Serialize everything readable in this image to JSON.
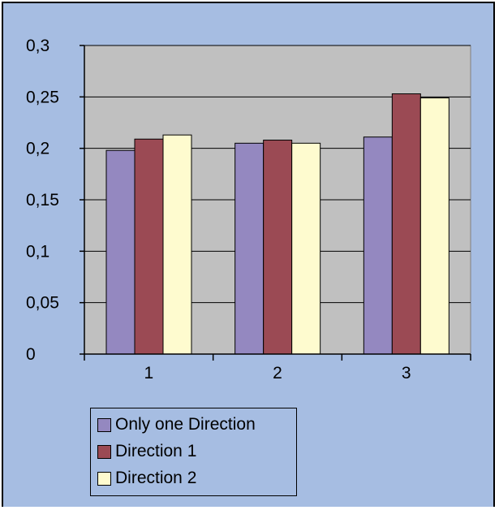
{
  "chart_data": {
    "type": "bar",
    "categories": [
      "1",
      "2",
      "3"
    ],
    "series": [
      {
        "name": "Only one Direction",
        "color": "#9488c0",
        "values": [
          0.198,
          0.205,
          0.211
        ]
      },
      {
        "name": "Direction 1",
        "color": "#9b4a54",
        "values": [
          0.209,
          0.208,
          0.253
        ]
      },
      {
        "name": "Direction 2",
        "color": "#fefbcf",
        "values": [
          0.213,
          0.205,
          0.249
        ]
      }
    ],
    "ylim": [
      0,
      0.3
    ],
    "yticks": [
      0,
      0.05,
      0.1,
      0.15,
      0.2,
      0.25,
      0.3
    ],
    "ytick_labels": [
      "0",
      "0,05",
      "0,1",
      "0,15",
      "0,2",
      "0,25",
      "0,3"
    ],
    "grid": true,
    "plot_background": "#c0c0c0",
    "chart_background": "#a6bde2",
    "legend_position": "bottom-left"
  }
}
